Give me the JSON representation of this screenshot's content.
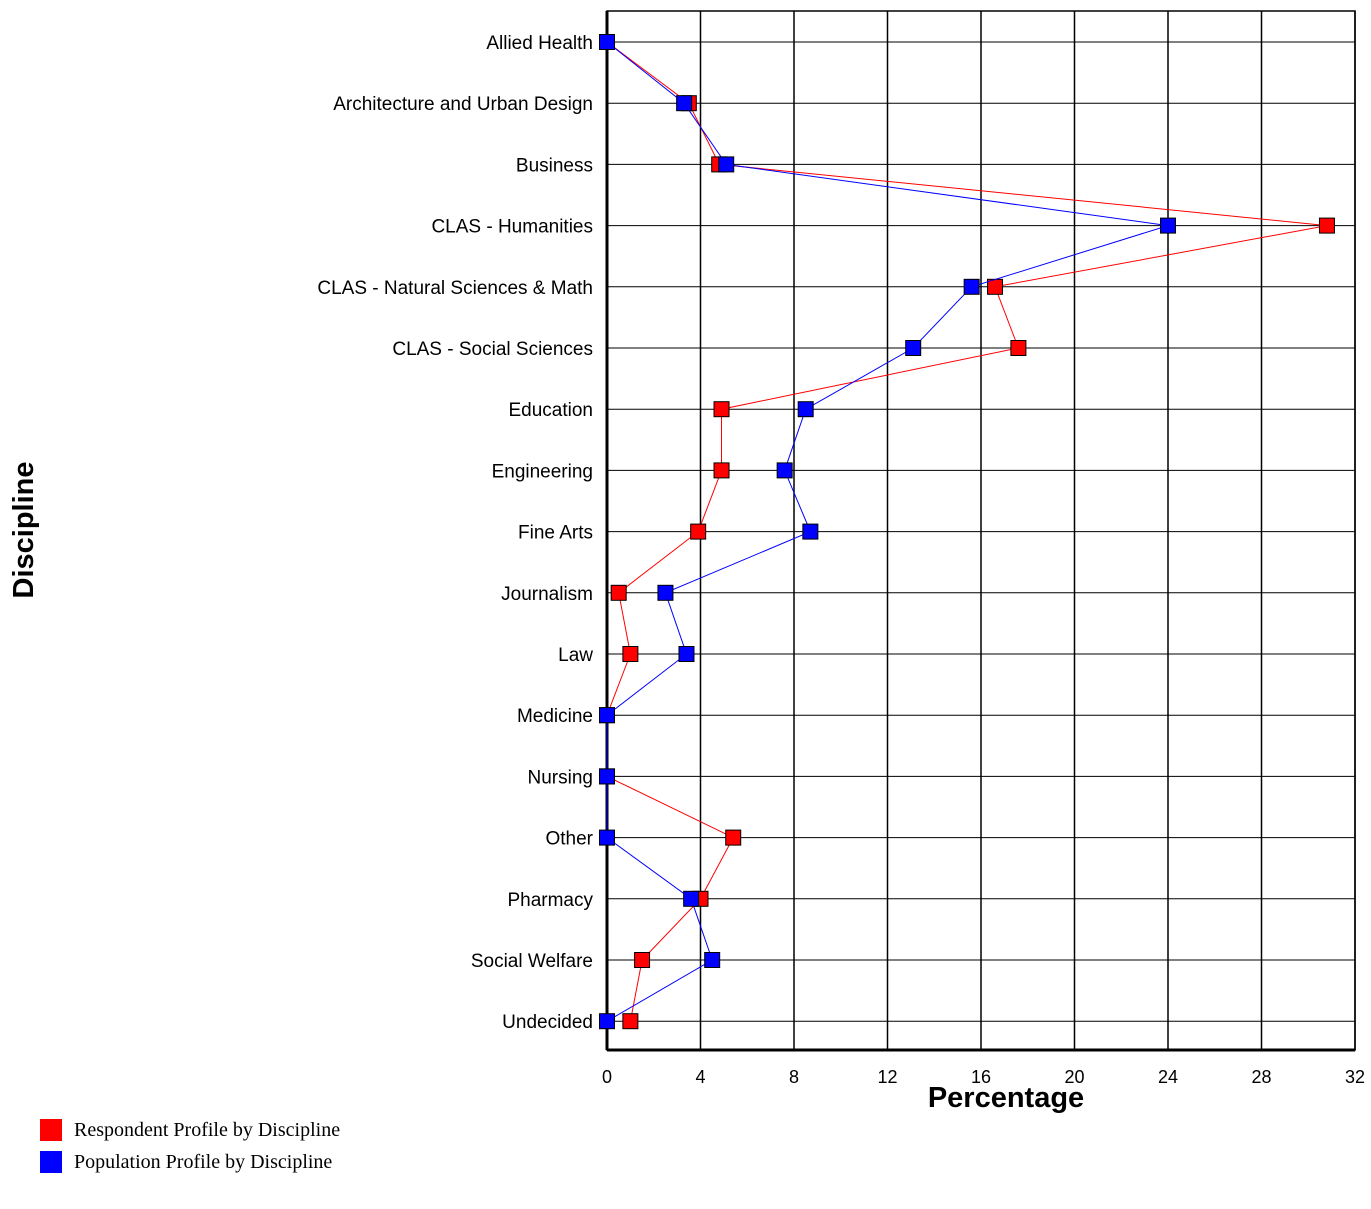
{
  "chart_data": {
    "type": "line",
    "orientation": "horizontal",
    "xlabel": "Percentage",
    "ylabel": "Discipline",
    "xlim": [
      0,
      32
    ],
    "xticks": [
      0,
      4,
      8,
      12,
      16,
      20,
      24,
      28,
      32
    ],
    "grid": true,
    "legend_placement": "bottom-left",
    "categories": [
      "Allied Health",
      "Architecture and Urban Design",
      "Business",
      "CLAS - Humanities",
      "CLAS - Natural Sciences & Math",
      "CLAS - Social Sciences",
      "Education",
      "Engineering",
      "Fine Arts",
      "Journalism",
      "Law",
      "Medicine",
      "Nursing",
      "Other",
      "Pharmacy",
      "Social Welfare",
      "Undecided"
    ],
    "series": [
      {
        "name": "Respondent Profile by Discipline",
        "color": "#ff0000",
        "values": [
          0.0,
          3.5,
          4.8,
          30.8,
          16.6,
          17.6,
          4.9,
          4.9,
          3.9,
          0.5,
          1.0,
          0.0,
          0.0,
          5.4,
          4.0,
          1.5,
          1.0
        ]
      },
      {
        "name": "Population Profile by Discipline",
        "color": "#0000ff",
        "values": [
          0.0,
          3.3,
          5.1,
          24.0,
          15.6,
          13.1,
          8.5,
          7.6,
          8.7,
          2.5,
          3.4,
          0.0,
          0.0,
          0.0,
          3.6,
          4.5,
          0.0
        ]
      }
    ]
  }
}
